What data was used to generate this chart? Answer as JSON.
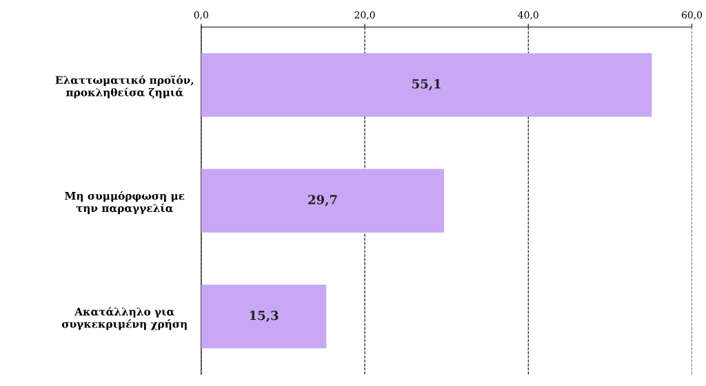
{
  "chart_data": {
    "type": "bar",
    "orientation": "horizontal",
    "categories": [
      "Ελαττωματικό προϊόν,\nπροκληθείσα ζημιά",
      "Μη συμμόρφωση με\nτην παραγγελία",
      "Ακατάλληλο για\nσυγκεκριμένη χρήση"
    ],
    "values": [
      55.1,
      29.7,
      15.3
    ],
    "value_labels": [
      "55,1",
      "29,7",
      "15,3"
    ],
    "color": "#c8a8f4",
    "xlim": [
      0,
      60
    ],
    "xticks": [
      {
        "value": 0,
        "label": "0,0"
      },
      {
        "value": 20,
        "label": "20,0"
      },
      {
        "value": 40,
        "label": "40,0"
      },
      {
        "value": 60,
        "label": "60,0"
      }
    ],
    "grid": "x",
    "line_style": "dashed"
  }
}
